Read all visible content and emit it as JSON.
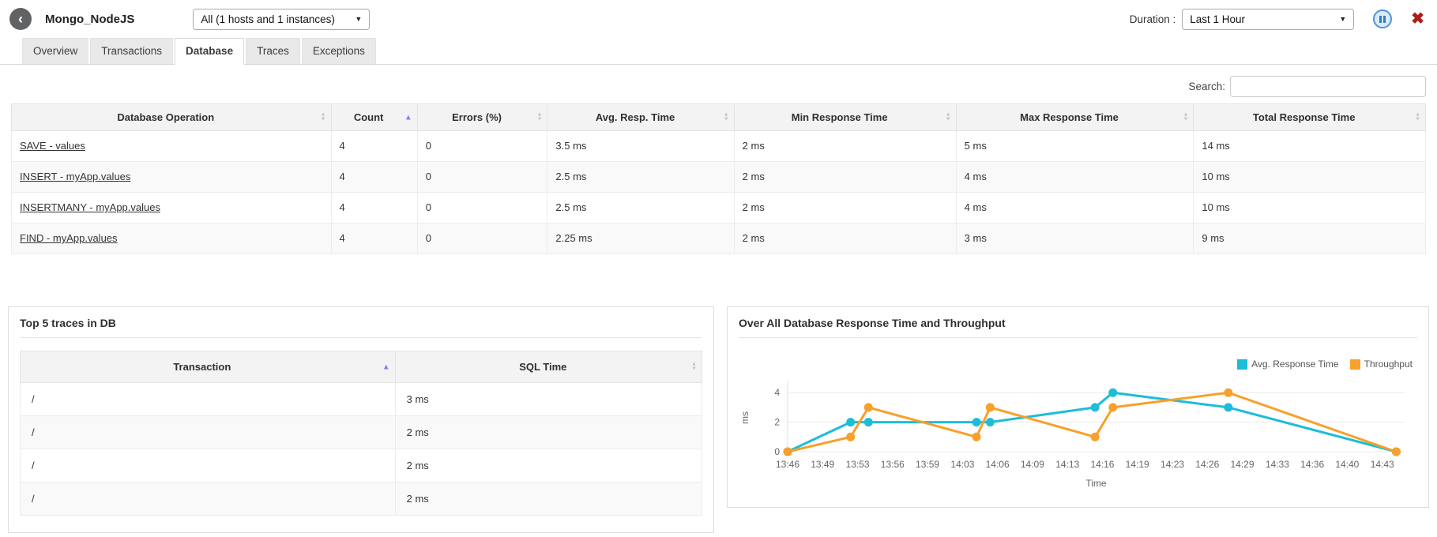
{
  "icons": {
    "back": "‹",
    "dropdown": "▼",
    "close": "✖",
    "sort_asc": "▲",
    "sort_desc": "▼"
  },
  "header": {
    "title": "Mongo_NodeJS",
    "instance_dropdown": "All (1 hosts and 1 instances)",
    "duration_label": "Duration :",
    "duration_dropdown": "Last 1 Hour"
  },
  "tabs": [
    {
      "label": "Overview",
      "active": false
    },
    {
      "label": "Transactions",
      "active": false
    },
    {
      "label": "Database",
      "active": true
    },
    {
      "label": "Traces",
      "active": false
    },
    {
      "label": "Exceptions",
      "active": false
    }
  ],
  "search": {
    "label": "Search:",
    "value": "",
    "placeholder": ""
  },
  "db_table": {
    "columns": [
      {
        "label": "Database Operation",
        "sort": "none"
      },
      {
        "label": "Count",
        "sort": "asc"
      },
      {
        "label": "Errors (%)",
        "sort": "none"
      },
      {
        "label": "Avg. Resp. Time",
        "sort": "none"
      },
      {
        "label": "Min Response Time",
        "sort": "none"
      },
      {
        "label": "Max Response Time",
        "sort": "none"
      },
      {
        "label": "Total Response Time",
        "sort": "none"
      }
    ],
    "col_widths": [
      "22.6%",
      "6.1%",
      "9.2%",
      "13.2%",
      "15.7%",
      "16.8%",
      "16.4%"
    ],
    "rows": [
      [
        "SAVE - values",
        "4",
        "0",
        "3.5 ms",
        "2 ms",
        "5 ms",
        "14 ms"
      ],
      [
        "INSERT - myApp.values",
        "4",
        "0",
        "2.5 ms",
        "2 ms",
        "4 ms",
        "10 ms"
      ],
      [
        "INSERTMANY - myApp.values",
        "4",
        "0",
        "2.5 ms",
        "2 ms",
        "4 ms",
        "10 ms"
      ],
      [
        "FIND - myApp.values",
        "4",
        "0",
        "2.25 ms",
        "2 ms",
        "3 ms",
        "9 ms"
      ]
    ]
  },
  "traces_panel": {
    "title": "Top 5 traces in DB",
    "columns": [
      {
        "label": "Transaction",
        "sort": "asc"
      },
      {
        "label": "SQL Time",
        "sort": "none"
      }
    ],
    "col_widths": [
      "55%",
      "45%"
    ],
    "rows": [
      [
        "/",
        "3 ms"
      ],
      [
        "/",
        "2 ms"
      ],
      [
        "/",
        "2 ms"
      ],
      [
        "/",
        "2 ms"
      ]
    ]
  },
  "chart_panel": {
    "title": "Over All Database Response Time and Throughput"
  },
  "chart_data": {
    "type": "line",
    "title": "Over All Database Response Time and Throughput",
    "xlabel": "Time",
    "ylabel": "ms",
    "x_times": [
      "13:46",
      "13:52",
      "13:54",
      "14:04",
      "14:05",
      "14:15",
      "14:17",
      "14:28",
      "14:44"
    ],
    "x_minutes": [
      0,
      6,
      7.7,
      18,
      19.3,
      29.3,
      31,
      42,
      58
    ],
    "series": [
      {
        "name": "Avg. Response Time",
        "color": "#1dbcd9",
        "values": [
          0,
          2,
          2,
          2,
          2,
          3,
          4,
          3,
          0
        ]
      },
      {
        "name": "Throughput",
        "color": "#f7a02b",
        "values": [
          0,
          1,
          3,
          1,
          3,
          1,
          3,
          4,
          0
        ]
      }
    ],
    "xtick_labels": [
      "13:46",
      "13:49",
      "13:53",
      "13:56",
      "13:59",
      "14:03",
      "14:06",
      "14:09",
      "14:13",
      "14:16",
      "14:19",
      "14:23",
      "14:26",
      "14:29",
      "14:33",
      "14:36",
      "14:40",
      "14:43"
    ],
    "xtick_minutes": [
      0,
      3.33,
      6.67,
      10,
      13.33,
      16.67,
      20,
      23.33,
      26.67,
      30,
      33.33,
      36.67,
      40,
      43.33,
      46.67,
      50,
      53.33,
      56.67
    ],
    "yticks": [
      0,
      2,
      4
    ],
    "ylim": [
      0,
      4.6
    ],
    "xlim": [
      0,
      58.8
    ],
    "grid": "horizontal",
    "legend_position": "top-right"
  }
}
